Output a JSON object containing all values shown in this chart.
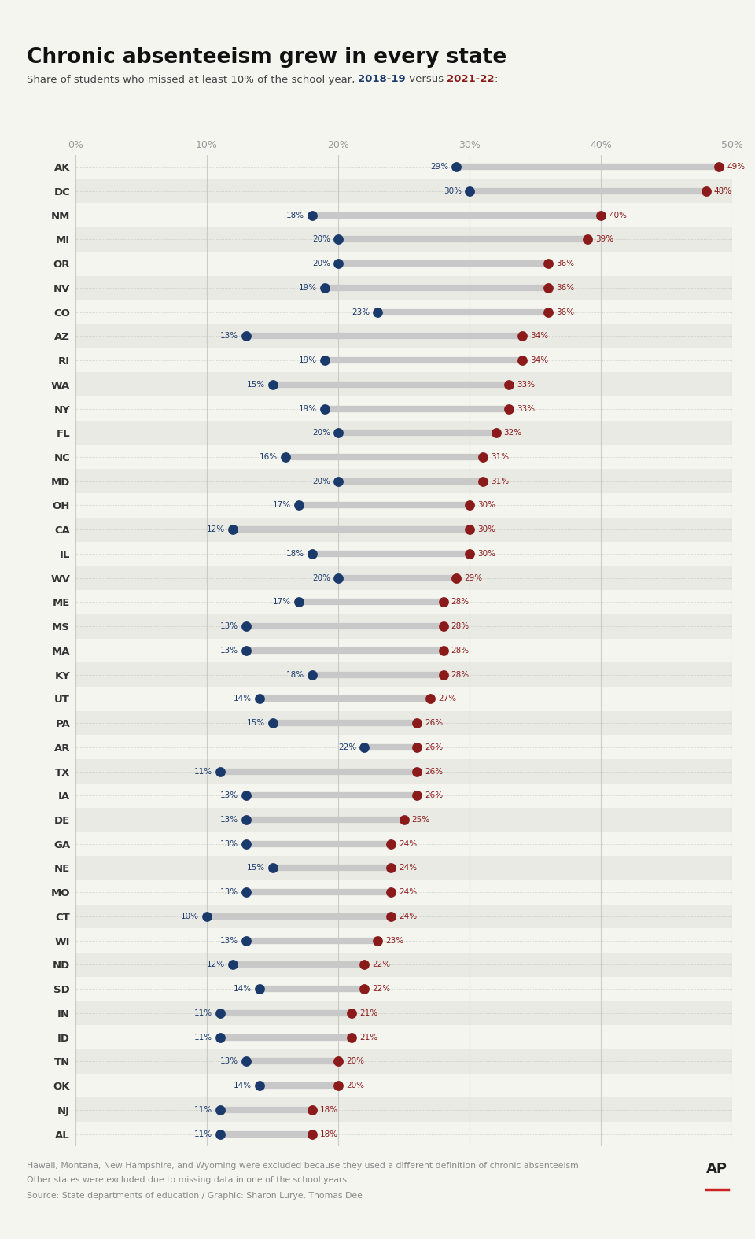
{
  "title": "Chronic absenteeism grew in every state",
  "subtitle_plain": "Share of students who missed at least 10% of the school year, ",
  "subtitle_year1": "2018-19",
  "subtitle_versus": " versus ",
  "subtitle_year2": "2021-22",
  "subtitle_colon": ":",
  "states": [
    "AK",
    "DC",
    "NM",
    "MI",
    "OR",
    "NV",
    "CO",
    "AZ",
    "RI",
    "WA",
    "NY",
    "FL",
    "NC",
    "MD",
    "OH",
    "CA",
    "IL",
    "WV",
    "ME",
    "MS",
    "MA",
    "KY",
    "UT",
    "PA",
    "AR",
    "TX",
    "IA",
    "DE",
    "GA",
    "NE",
    "MO",
    "CT",
    "WI",
    "ND",
    "SD",
    "IN",
    "ID",
    "TN",
    "OK",
    "NJ",
    "AL"
  ],
  "values_2018": [
    29,
    30,
    18,
    20,
    20,
    19,
    23,
    13,
    19,
    15,
    19,
    20,
    16,
    20,
    17,
    12,
    18,
    20,
    17,
    13,
    13,
    18,
    14,
    15,
    22,
    11,
    13,
    13,
    13,
    15,
    13,
    10,
    13,
    12,
    14,
    11,
    11,
    13,
    14,
    11,
    11
  ],
  "values_2021": [
    49,
    48,
    40,
    39,
    36,
    36,
    36,
    34,
    34,
    33,
    33,
    32,
    31,
    31,
    30,
    30,
    30,
    29,
    28,
    28,
    28,
    28,
    27,
    26,
    26,
    26,
    26,
    25,
    24,
    24,
    24,
    24,
    23,
    22,
    22,
    21,
    21,
    20,
    20,
    18,
    18
  ],
  "color_2018": "#1a3a6b",
  "color_2021": "#8b1a1a",
  "connector_color": "#c8c8c8",
  "bg_color": "#f5f5f0",
  "row_even_color": "#f5f5f0",
  "row_odd_color": "#eaeae5",
  "grid_color": "#aaaaaa",
  "vline_color": "#bbbbbb",
  "footnote1": "Hawaii, Montana, New Hampshire, and Wyoming were excluded because they used a different definition of chronic absenteeism.",
  "footnote2": "Other states were excluded due to missing data in one of the school years.",
  "source": "Source: State departments of education / Graphic: Sharon Lurye, Thomas Dee",
  "xlim_min": 0,
  "xlim_max": 50
}
